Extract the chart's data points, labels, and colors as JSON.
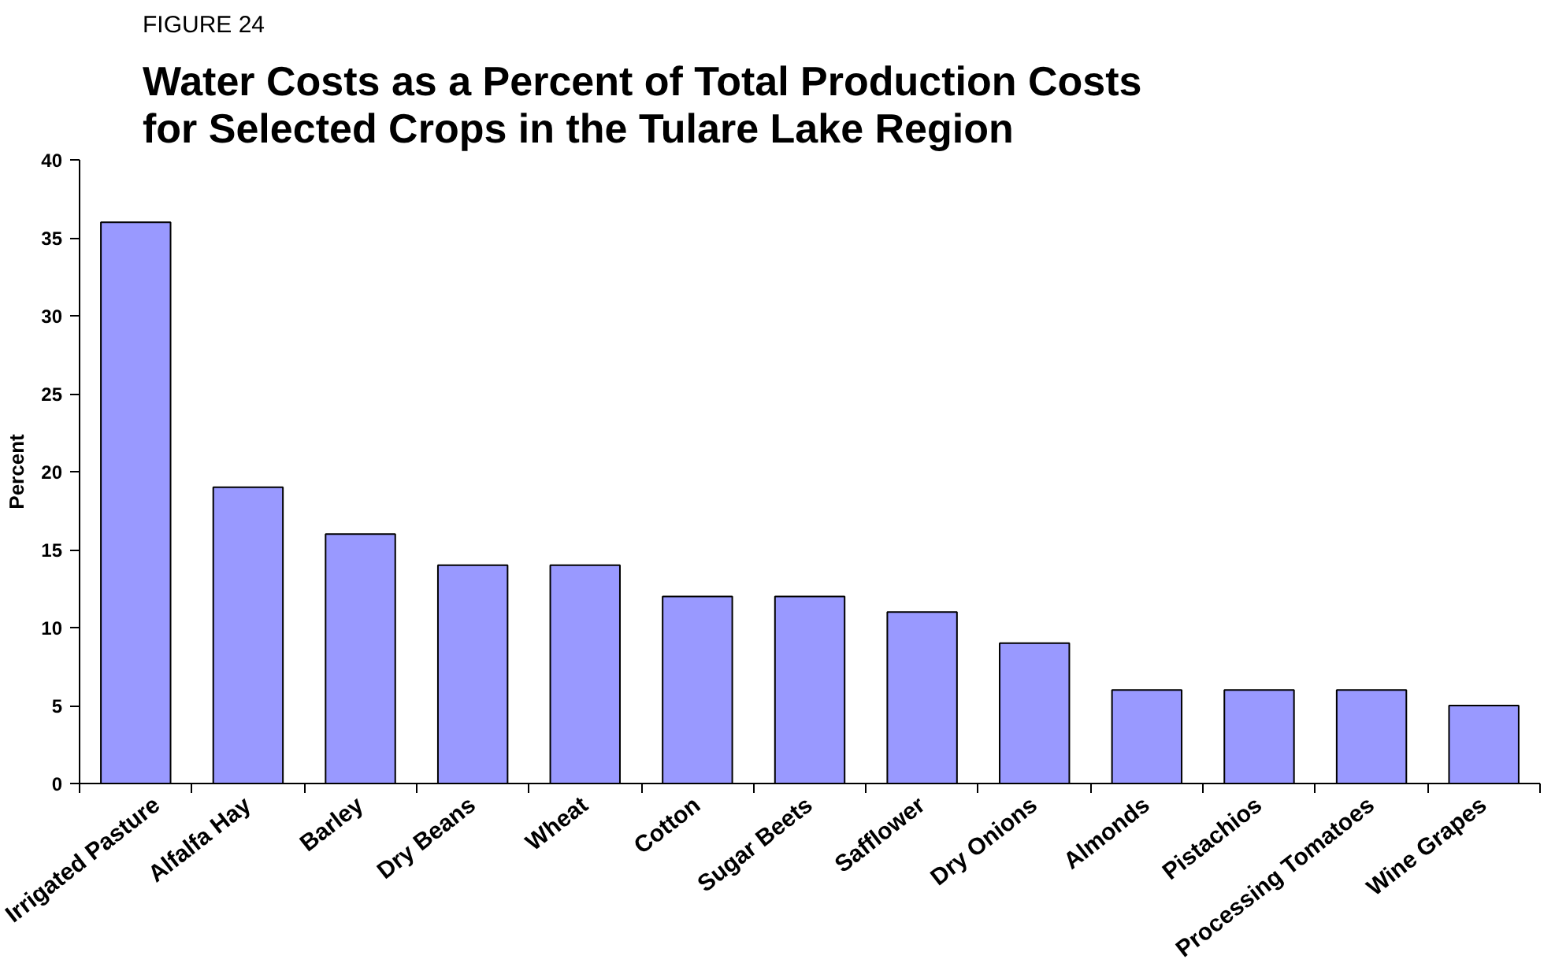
{
  "chart_data": {
    "type": "bar",
    "subtitle": "FIGURE 24",
    "title": "Water Costs as a Percent of Total Production Costs\nfor Selected Crops in the Tulare Lake Region",
    "ylabel": "Percent",
    "categories": [
      "Irrigated Pasture",
      "Alfalfa Hay",
      "Barley",
      "Dry Beans",
      "Wheat",
      "Cotton",
      "Sugar Beets",
      "Safflower",
      "Dry Onions",
      "Almonds",
      "Pistachios",
      "Processing Tomatoes",
      "Wine Grapes"
    ],
    "values": [
      36,
      19,
      16,
      14,
      14,
      12,
      12,
      11,
      9,
      6,
      6,
      6,
      5
    ],
    "color": "#9999ff",
    "ylim": [
      0,
      40
    ],
    "yticks": [
      0,
      5,
      10,
      15,
      20,
      25,
      30,
      35,
      40
    ],
    "grid": false
  }
}
